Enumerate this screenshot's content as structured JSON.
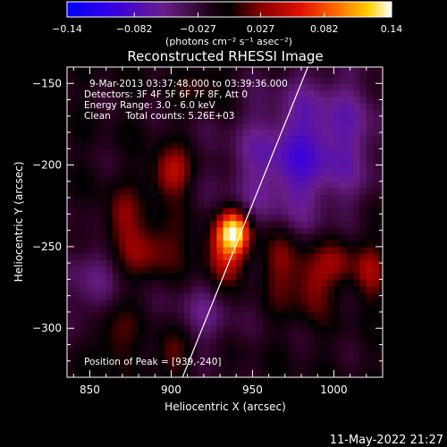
{
  "chart_data": {
    "type": "heatmap",
    "title": "Reconstructed RHESSI Image",
    "xlabel": "Heliocentric X (arcsec)",
    "ylabel": "Heliocentric Y (arcsec)",
    "xlim": [
      836,
      1030
    ],
    "ylim": [
      -330,
      -140
    ],
    "xticks": [
      850,
      900,
      950,
      1000
    ],
    "xtick_labels": [
      "850",
      "900",
      "950",
      "1000"
    ],
    "yticks": [
      -150,
      -200,
      -250,
      -300
    ],
    "ytick_labels": [
      "−150",
      "−200",
      "−250",
      "−300"
    ],
    "colorbar": {
      "ticks": [
        -0.14,
        -0.082,
        -0.027,
        0.027,
        0.082,
        0.14
      ],
      "tick_labels": [
        "−0.14",
        "−0.082",
        "−0.027",
        "0.027",
        "0.082",
        "0.14"
      ],
      "unit_label": "(photons cm⁻² s⁻¹ asec⁻²)",
      "colors": [
        "#0000ff",
        "#4b00c8",
        "#6a1e8a",
        "#000000",
        "#8c0000",
        "#e01000",
        "#ff6a00",
        "#ffc000",
        "#ffffff"
      ]
    },
    "annotations": [
      "9-Mar-2013 03:37:48.000 to 03:39:36.000",
      "Detectors: 3F 4F 5F 6F 7F 8F, Att 0",
      "Energy Range: 3.0 - 6.0 keV",
      "Clean     Total counts: 5.26E+03"
    ],
    "peak_label": "Position of Peak = [939,-240]",
    "peak": [
      939,
      -240
    ],
    "sources": [
      {
        "x": 939,
        "y": -240,
        "amp": 0.14,
        "sx": 7,
        "sy": 9
      },
      {
        "x": 933,
        "y": -256,
        "amp": 0.07,
        "sx": 10,
        "sy": 12
      },
      {
        "x": 900,
        "y": -205,
        "amp": 0.06,
        "sx": 9,
        "sy": 10
      },
      {
        "x": 888,
        "y": -250,
        "amp": 0.045,
        "sx": 14,
        "sy": 12
      },
      {
        "x": 868,
        "y": -232,
        "amp": 0.04,
        "sx": 8,
        "sy": 12
      },
      {
        "x": 862,
        "y": -305,
        "amp": 0.04,
        "sx": 10,
        "sy": 14
      },
      {
        "x": 900,
        "y": -315,
        "amp": 0.035,
        "sx": 9,
        "sy": 10
      },
      {
        "x": 968,
        "y": -258,
        "amp": 0.045,
        "sx": 9,
        "sy": 16
      },
      {
        "x": 986,
        "y": -272,
        "amp": 0.045,
        "sx": 8,
        "sy": 14
      },
      {
        "x": 1003,
        "y": -258,
        "amp": 0.04,
        "sx": 8,
        "sy": 12
      },
      {
        "x": 1022,
        "y": -265,
        "amp": 0.04,
        "sx": 7,
        "sy": 14
      },
      {
        "x": 920,
        "y": -150,
        "amp": 0.03,
        "sx": 9,
        "sy": 8
      },
      {
        "x": 965,
        "y": -205,
        "amp": -0.05,
        "sx": 25,
        "sy": 30
      },
      {
        "x": 1000,
        "y": -180,
        "amp": -0.05,
        "sx": 25,
        "sy": 30
      },
      {
        "x": 850,
        "y": -275,
        "amp": -0.04,
        "sx": 12,
        "sy": 25
      },
      {
        "x": 920,
        "y": -290,
        "amp": -0.035,
        "sx": 15,
        "sy": 18
      }
    ],
    "limb_line": [
      [
        907,
        -330
      ],
      [
        984,
        -140
      ]
    ]
  },
  "footer": {
    "date": "11-May-2022 21:27"
  }
}
